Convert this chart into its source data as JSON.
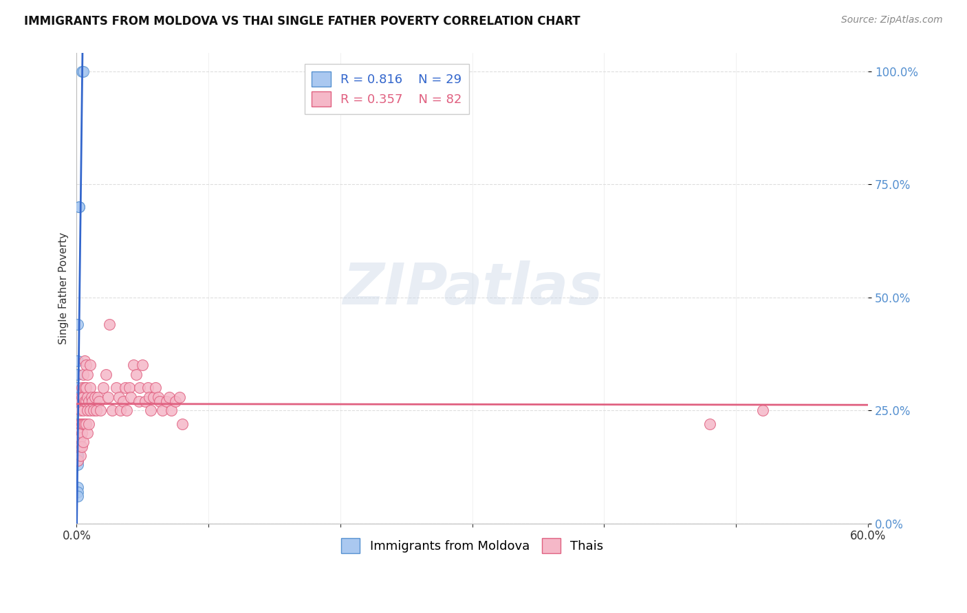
{
  "title": "IMMIGRANTS FROM MOLDOVA VS THAI SINGLE FATHER POVERTY CORRELATION CHART",
  "source": "Source: ZipAtlas.com",
  "ylabel": "Single Father Poverty",
  "ytick_values": [
    0.0,
    0.25,
    0.5,
    0.75,
    1.0
  ],
  "legend_blue_r": "R = 0.816",
  "legend_blue_n": "N = 29",
  "legend_pink_r": "R = 0.357",
  "legend_pink_n": "N = 82",
  "legend_label_blue": "Immigrants from Moldova",
  "legend_label_pink": "Thais",
  "watermark": "ZIPatlas",
  "blue_fill": "#aac8f0",
  "blue_edge": "#5590d0",
  "pink_fill": "#f5b8c8",
  "pink_edge": "#e06080",
  "blue_line": "#3366cc",
  "pink_line": "#e06080",
  "blue_scatter_x": [
    0.004,
    0.005,
    0.002,
    0.002,
    0.001,
    0.001,
    0.001,
    0.001,
    0.001,
    0.001,
    0.001,
    0.001,
    0.001,
    0.001,
    0.001,
    0.001,
    0.001,
    0.001,
    0.001,
    0.001,
    0.001,
    0.001,
    0.001,
    0.001,
    0.001,
    0.001,
    0.001,
    0.001,
    0.001
  ],
  "blue_scatter_y": [
    1.0,
    1.0,
    0.7,
    0.7,
    0.44,
    0.36,
    0.33,
    0.3,
    0.28,
    0.27,
    0.22,
    0.21,
    0.2,
    0.2,
    0.19,
    0.18,
    0.18,
    0.17,
    0.17,
    0.16,
    0.16,
    0.15,
    0.15,
    0.14,
    0.14,
    0.13,
    0.08,
    0.07,
    0.06
  ],
  "pink_scatter_x": [
    0.001,
    0.002,
    0.002,
    0.002,
    0.002,
    0.003,
    0.003,
    0.003,
    0.003,
    0.003,
    0.003,
    0.003,
    0.004,
    0.004,
    0.004,
    0.004,
    0.004,
    0.005,
    0.005,
    0.005,
    0.005,
    0.005,
    0.006,
    0.006,
    0.006,
    0.006,
    0.007,
    0.007,
    0.007,
    0.007,
    0.008,
    0.008,
    0.008,
    0.008,
    0.009,
    0.009,
    0.01,
    0.01,
    0.01,
    0.011,
    0.012,
    0.013,
    0.014,
    0.015,
    0.016,
    0.017,
    0.018,
    0.02,
    0.022,
    0.024,
    0.025,
    0.027,
    0.03,
    0.032,
    0.033,
    0.035,
    0.037,
    0.038,
    0.04,
    0.041,
    0.043,
    0.045,
    0.047,
    0.048,
    0.05,
    0.052,
    0.054,
    0.055,
    0.056,
    0.058,
    0.06,
    0.062,
    0.063,
    0.065,
    0.068,
    0.07,
    0.072,
    0.075,
    0.078,
    0.08,
    0.48,
    0.52
  ],
  "pink_scatter_y": [
    0.14,
    0.22,
    0.2,
    0.18,
    0.17,
    0.28,
    0.27,
    0.25,
    0.22,
    0.19,
    0.17,
    0.15,
    0.3,
    0.28,
    0.22,
    0.2,
    0.17,
    0.33,
    0.28,
    0.25,
    0.22,
    0.18,
    0.36,
    0.3,
    0.27,
    0.22,
    0.35,
    0.3,
    0.27,
    0.22,
    0.33,
    0.28,
    0.25,
    0.2,
    0.27,
    0.22,
    0.35,
    0.3,
    0.25,
    0.28,
    0.27,
    0.25,
    0.28,
    0.25,
    0.28,
    0.27,
    0.25,
    0.3,
    0.33,
    0.28,
    0.44,
    0.25,
    0.3,
    0.28,
    0.25,
    0.27,
    0.3,
    0.25,
    0.3,
    0.28,
    0.35,
    0.33,
    0.27,
    0.3,
    0.35,
    0.27,
    0.3,
    0.28,
    0.25,
    0.28,
    0.3,
    0.28,
    0.27,
    0.25,
    0.27,
    0.28,
    0.25,
    0.27,
    0.28,
    0.22,
    0.22,
    0.25
  ],
  "xlim_max": 0.6,
  "ylim_max": 1.04,
  "background_color": "#ffffff"
}
